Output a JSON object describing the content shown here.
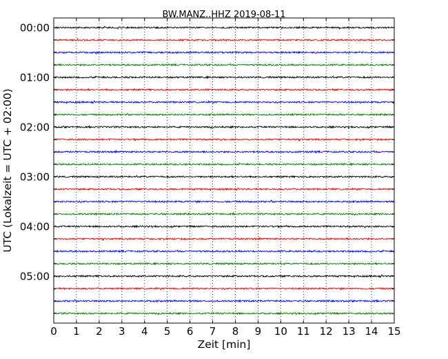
{
  "chart_data": {
    "type": "line",
    "title": "BW.MANZ..HHZ 2019-08-11",
    "xlabel": "Zeit  [min]",
    "ylabel": "UTC (Lokalzeit = UTC + 02:00)",
    "xlim": [
      0,
      15
    ],
    "x_ticks": [
      "0",
      "1",
      "2",
      "3",
      "4",
      "5",
      "6",
      "7",
      "8",
      "9",
      "10",
      "11",
      "12",
      "13",
      "14",
      "15"
    ],
    "y_ticks": [
      "00:00",
      "01:00",
      "02:00",
      "03:00",
      "04:00",
      "05:00"
    ],
    "grid": "vertical dotted at each minute",
    "trace_count": 24,
    "trace_interval_minutes": 15,
    "first_trace_utc": "00:00",
    "last_trace_utc": "05:45",
    "trace_colors": [
      "#000000",
      "#ff0000",
      "#0000ff",
      "#008000"
    ]
  }
}
